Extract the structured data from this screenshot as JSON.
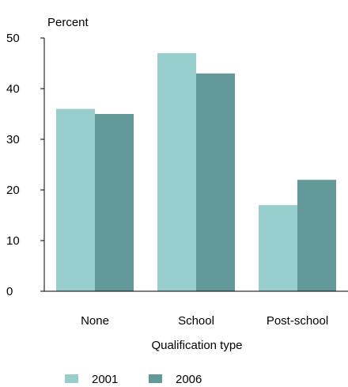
{
  "chart_data": {
    "type": "bar",
    "ylabel": "Percent",
    "xlabel": "Qualification type",
    "categories": [
      "None",
      "School",
      "Post-school"
    ],
    "series": [
      {
        "name": "2001",
        "color": "#98cdcd",
        "values": [
          36,
          47,
          17
        ]
      },
      {
        "name": "2006",
        "color": "#639999",
        "values": [
          35,
          43,
          22
        ]
      }
    ],
    "ylim": [
      0,
      50
    ],
    "yticks": [
      0,
      10,
      20,
      30,
      40,
      50
    ],
    "grid": false,
    "legend": "bottom"
  }
}
